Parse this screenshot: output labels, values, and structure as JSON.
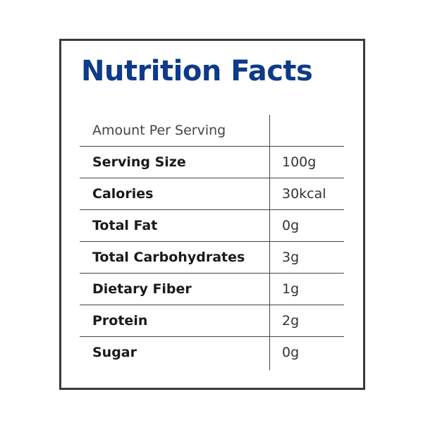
{
  "title": "Nutrition Facts",
  "table": {
    "header": "Amount Per Serving",
    "rows": [
      [
        "Serving Size",
        "100g"
      ],
      [
        "Calories",
        "30kcal"
      ],
      [
        "Total Fat",
        "0g"
      ],
      [
        "Total Carbohydrates",
        "3g"
      ],
      [
        "Dietary Fiber",
        "1g"
      ],
      [
        "Protein",
        "2g"
      ],
      [
        "Sugar",
        "0g"
      ]
    ]
  }
}
